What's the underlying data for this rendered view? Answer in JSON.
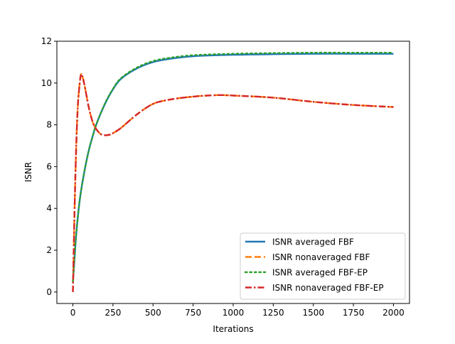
{
  "chart_data": {
    "type": "line",
    "title": "",
    "xlabel": "Iterations",
    "ylabel": "ISNR",
    "xlim": [
      -100,
      2100
    ],
    "ylim": [
      -0.55,
      12
    ],
    "xticks": [
      0,
      250,
      500,
      750,
      1000,
      1250,
      1500,
      1750,
      2000
    ],
    "yticks": [
      0,
      2,
      4,
      6,
      8,
      10,
      12
    ],
    "xtick_labels": [
      "0",
      "250",
      "500",
      "750",
      "1000",
      "1250",
      "1500",
      "1750",
      "2000"
    ],
    "ytick_labels": [
      "0",
      "2",
      "4",
      "6",
      "8",
      "10",
      "12"
    ],
    "grid": false,
    "legend_position": "lower-right",
    "series": [
      {
        "name": "ISNR averaged FBF",
        "color": "#1f77b4",
        "style": "solid",
        "x": [
          0,
          10,
          20,
          35,
          50,
          75,
          100,
          125,
          150,
          200,
          250,
          300,
          400,
          500,
          600,
          750,
          1000,
          1250,
          1500,
          1750,
          2000
        ],
        "y": [
          0.5,
          1.6,
          2.7,
          3.9,
          4.8,
          5.9,
          6.8,
          7.5,
          8.1,
          9.0,
          9.7,
          10.2,
          10.7,
          11.0,
          11.15,
          11.28,
          11.35,
          11.38,
          11.4,
          11.4,
          11.4
        ]
      },
      {
        "name": "ISNR nonaveraged FBF",
        "color": "#ff7f0e",
        "style": "dashed",
        "x": [
          0,
          10,
          20,
          30,
          40,
          50,
          60,
          75,
          100,
          125,
          150,
          175,
          200,
          225,
          250,
          300,
          400,
          500,
          600,
          750,
          900,
          1000,
          1250,
          1500,
          1750,
          2000
        ],
        "y": [
          0.0,
          3.8,
          6.8,
          8.8,
          9.8,
          10.4,
          10.3,
          9.8,
          8.8,
          8.1,
          7.75,
          7.55,
          7.5,
          7.52,
          7.6,
          7.85,
          8.5,
          9.0,
          9.2,
          9.35,
          9.42,
          9.4,
          9.3,
          9.1,
          8.95,
          8.85
        ]
      },
      {
        "name": "ISNR averaged FBF-EP",
        "color": "#2ca02c",
        "style": "dotted",
        "x": [
          0,
          10,
          20,
          35,
          50,
          75,
          100,
          125,
          150,
          200,
          250,
          300,
          400,
          500,
          600,
          750,
          1000,
          1250,
          1500,
          1750,
          2000
        ],
        "y": [
          0.5,
          1.6,
          2.7,
          3.9,
          4.8,
          5.9,
          6.8,
          7.5,
          8.1,
          9.02,
          9.72,
          10.23,
          10.74,
          11.05,
          11.2,
          11.33,
          11.4,
          11.43,
          11.45,
          11.45,
          11.45
        ]
      },
      {
        "name": "ISNR nonaveraged FBF-EP",
        "color": "#d62728",
        "style": "dashdot",
        "x": [
          0,
          10,
          20,
          30,
          40,
          50,
          60,
          75,
          100,
          125,
          150,
          175,
          200,
          225,
          250,
          300,
          400,
          500,
          600,
          750,
          900,
          1000,
          1250,
          1500,
          1750,
          2000
        ],
        "y": [
          0.0,
          3.8,
          6.8,
          8.8,
          9.8,
          10.4,
          10.3,
          9.8,
          8.8,
          8.1,
          7.75,
          7.55,
          7.5,
          7.52,
          7.6,
          7.85,
          8.5,
          9.0,
          9.2,
          9.35,
          9.42,
          9.4,
          9.3,
          9.1,
          8.95,
          8.85
        ]
      }
    ]
  }
}
